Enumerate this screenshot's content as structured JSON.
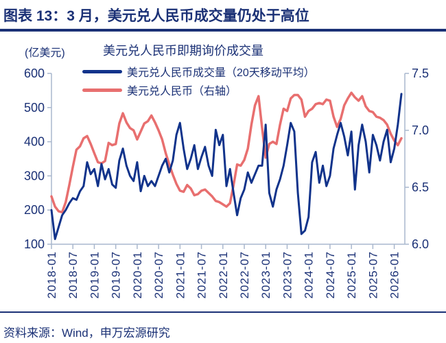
{
  "header": {
    "title": "图表 13：3 月，美元兑人民币成交量仍处于高位"
  },
  "footer": {
    "source": "资料来源：Wind，申万宏源研究"
  },
  "colors": {
    "navy_text": "#1b3176",
    "line_blue": "#11338b",
    "line_red": "#e86f6f",
    "axis_gray": "#a9b7cd"
  },
  "chart_data": {
    "type": "line",
    "title": "美元兑人民币即期询价成交量",
    "unit_label": "(亿美元)",
    "x_freq": "monthly",
    "x_start": "2018-01",
    "x_end": "2026-03",
    "x_tick_labels": [
      "2018-01",
      "2018-07",
      "2019-01",
      "2019-07",
      "2020-01",
      "2020-07",
      "2021-01",
      "2021-07",
      "2022-01",
      "2022-07",
      "2023-01",
      "2023-07",
      "2024-01",
      "2024-07",
      "2025-01",
      "2025-07",
      "2026-01"
    ],
    "left_axis": {
      "min": 100,
      "max": 600,
      "ticks": [
        600,
        500,
        400,
        300,
        200,
        100
      ]
    },
    "right_axis": {
      "min": 6.0,
      "max": 7.5,
      "ticks": [
        "7.5",
        "7.0",
        "6.5",
        "6.0"
      ]
    },
    "grid": false,
    "legend_position": "top-left",
    "series": [
      {
        "name": "美元兑人民币成交量（20天移动平均）",
        "axis": "left",
        "color": "#11338b",
        "values": [
          200,
          115,
          150,
          185,
          200,
          220,
          235,
          230,
          255,
          270,
          340,
          305,
          320,
          270,
          335,
          290,
          320,
          275,
          265,
          345,
          380,
          330,
          300,
          285,
          340,
          255,
          300,
          270,
          285,
          270,
          300,
          330,
          350,
          310,
          345,
          420,
          455,
          380,
          320,
          350,
          390,
          320,
          355,
          385,
          330,
          300,
          435,
          390,
          420,
          270,
          320,
          250,
          185,
          235,
          260,
          310,
          280,
          305,
          330,
          330,
          450,
          250,
          210,
          260,
          290,
          330,
          390,
          455,
          430,
          250,
          130,
          140,
          180,
          340,
          370,
          280,
          330,
          270,
          300,
          380,
          420,
          455,
          415,
          360,
          430,
          260,
          390,
          450,
          400,
          310,
          420,
          390,
          345,
          400,
          435,
          340,
          380,
          450,
          540
        ]
      },
      {
        "name": "美元兑人民币（右轴）",
        "axis": "right",
        "color": "#e86f6f",
        "values": [
          6.42,
          6.33,
          6.29,
          6.28,
          6.37,
          6.52,
          6.68,
          6.83,
          6.86,
          6.93,
          6.95,
          6.88,
          6.8,
          6.72,
          6.71,
          6.73,
          6.89,
          6.87,
          6.88,
          7.06,
          7.15,
          7.07,
          7.02,
          7.0,
          6.92,
          6.99,
          7.06,
          7.08,
          7.13,
          7.07,
          7.0,
          6.92,
          6.8,
          6.7,
          6.61,
          6.53,
          6.47,
          6.46,
          6.52,
          6.49,
          6.43,
          6.44,
          6.47,
          6.48,
          6.45,
          6.42,
          6.38,
          6.37,
          6.35,
          6.33,
          6.36,
          6.52,
          6.7,
          6.69,
          6.74,
          6.84,
          7.05,
          7.22,
          7.3,
          7.02,
          6.76,
          6.88,
          6.9,
          6.88,
          7.05,
          7.19,
          7.17,
          7.28,
          7.31,
          7.31,
          7.27,
          7.12,
          7.17,
          7.19,
          7.23,
          7.24,
          7.23,
          7.27,
          7.26,
          7.12,
          7.03,
          7.1,
          7.22,
          7.28,
          7.33,
          7.29,
          7.26,
          7.3,
          7.21,
          7.17,
          7.16,
          7.12,
          7.11,
          7.09,
          7.05,
          6.97,
          6.91,
          6.87,
          6.93
        ]
      }
    ]
  }
}
